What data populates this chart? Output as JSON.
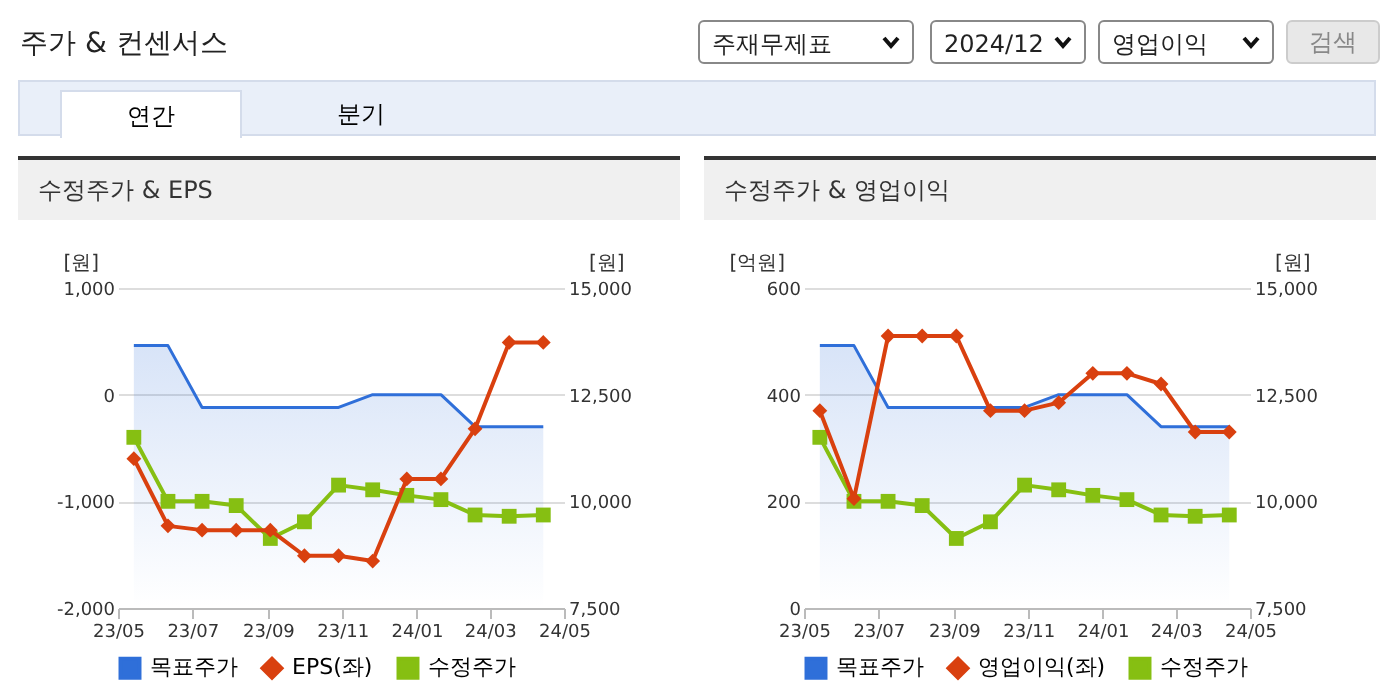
{
  "chart_data": [
    {
      "type": "other",
      "title": "주가 & 컨센서스",
      "annotations": [
        "주재무제표",
        "2024/12",
        "영업이익",
        "검색",
        "연간",
        "분기"
      ]
    },
    {
      "type": "line",
      "title": "수정주가 & EPS",
      "ylabel": "[원]",
      "y2label": "[원]",
      "x": [
        "2023-05-14",
        "2023-06-11",
        "2023-07-09",
        "2023-08-06",
        "2023-09-03",
        "2023-10-01",
        "2023-10-29",
        "2023-11-26",
        "2023-12-24",
        "2024-01-21",
        "2024-02-18",
        "2024-03-17",
        "2024-04-14"
      ],
      "xlim": [
        "2023-05-01",
        "2024-05-01"
      ],
      "xticks": [
        {
          "value": "2023-05-01",
          "label": "23/05"
        },
        {
          "value": "2023-07-01",
          "label": "23/07"
        },
        {
          "value": "2023-09-01",
          "label": "23/09"
        },
        {
          "value": "2023-11-01",
          "label": "23/11"
        },
        {
          "value": "2024-01-01",
          "label": "24/01"
        },
        {
          "value": "2024-03-01",
          "label": "24/03"
        },
        {
          "value": "2024-05-01",
          "label": "24/05"
        }
      ],
      "ylim": [
        -2000,
        1000
      ],
      "yticks": [
        {
          "value": -2000,
          "label": "-2,000"
        },
        {
          "value": -1000,
          "label": "-1,000"
        },
        0,
        {
          "value": 1000,
          "label": "1,000"
        }
      ],
      "y2lim": [
        7500,
        15000
      ],
      "y2ticks": [
        {
          "value": 7500,
          "label": "7,500"
        },
        {
          "value": 10000,
          "label": "10,000"
        },
        {
          "value": 12500,
          "label": "12,500"
        },
        {
          "value": 15000,
          "label": "15,000"
        }
      ],
      "grid": "y",
      "legend": "bottom",
      "series": [
        {
          "name": "목표주가",
          "type": "area",
          "axis": "y2",
          "color": "#2f6fd9",
          "values": [
            13650,
            13650,
            12200,
            12200,
            12200,
            12200,
            12200,
            12500,
            12500,
            12500,
            11750,
            11750,
            11750
          ]
        },
        {
          "name": "EPS(좌)",
          "type": "line",
          "axis": "y",
          "marker": "diamond",
          "color": "#d9400f",
          "values": [
            -600,
            -1230,
            -1270,
            -1270,
            -1270,
            -1510,
            -1510,
            -1560,
            -790,
            -790,
            -320,
            490,
            490
          ]
        },
        {
          "name": "수정주가",
          "type": "line",
          "axis": "y2",
          "marker": "square",
          "color": "#86bf12",
          "values": [
            11500,
            10000,
            10000,
            9900,
            9130,
            9520,
            10380,
            10270,
            10140,
            10040,
            9680,
            9650,
            9680
          ]
        }
      ]
    },
    {
      "type": "line",
      "title": "수정주가 & 영업이익",
      "ylabel": "[억원]",
      "y2label": "[원]",
      "x": [
        "2023-05-14",
        "2023-06-11",
        "2023-07-09",
        "2023-08-06",
        "2023-09-03",
        "2023-10-01",
        "2023-10-29",
        "2023-11-26",
        "2023-12-24",
        "2024-01-21",
        "2024-02-18",
        "2024-03-17",
        "2024-04-14"
      ],
      "xlim": [
        "2023-05-01",
        "2024-05-01"
      ],
      "xticks": [
        {
          "value": "2023-05-01",
          "label": "23/05"
        },
        {
          "value": "2023-07-01",
          "label": "23/07"
        },
        {
          "value": "2023-09-01",
          "label": "23/09"
        },
        {
          "value": "2023-11-01",
          "label": "23/11"
        },
        {
          "value": "2024-01-01",
          "label": "24/01"
        },
        {
          "value": "2024-03-01",
          "label": "24/03"
        },
        {
          "value": "2024-05-01",
          "label": "24/05"
        }
      ],
      "ylim": [
        0,
        600
      ],
      "yticks": [
        0,
        200,
        400,
        600
      ],
      "y2lim": [
        7500,
        15000
      ],
      "y2ticks": [
        {
          "value": 7500,
          "label": "7,500"
        },
        {
          "value": 10000,
          "label": "10,000"
        },
        {
          "value": 12500,
          "label": "12,500"
        },
        {
          "value": 15000,
          "label": "15,000"
        }
      ],
      "grid": "y",
      "legend": "bottom",
      "series": [
        {
          "name": "목표주가",
          "type": "area",
          "axis": "y2",
          "color": "#2f6fd9",
          "values": [
            13650,
            13650,
            12200,
            12200,
            12200,
            12200,
            12200,
            12500,
            12500,
            12500,
            11750,
            11750,
            11750
          ]
        },
        {
          "name": "영업이익(좌)",
          "type": "line",
          "axis": "y",
          "marker": "diamond",
          "color": "#d9400f",
          "values": [
            370,
            205,
            510,
            510,
            510,
            370,
            370,
            385,
            440,
            440,
            420,
            330,
            330
          ]
        },
        {
          "name": "수정주가",
          "type": "line",
          "axis": "y2",
          "marker": "square",
          "color": "#86bf12",
          "values": [
            11500,
            10000,
            10000,
            9900,
            9130,
            9520,
            10380,
            10270,
            10140,
            10040,
            9680,
            9650,
            9680
          ]
        }
      ]
    }
  ]
}
